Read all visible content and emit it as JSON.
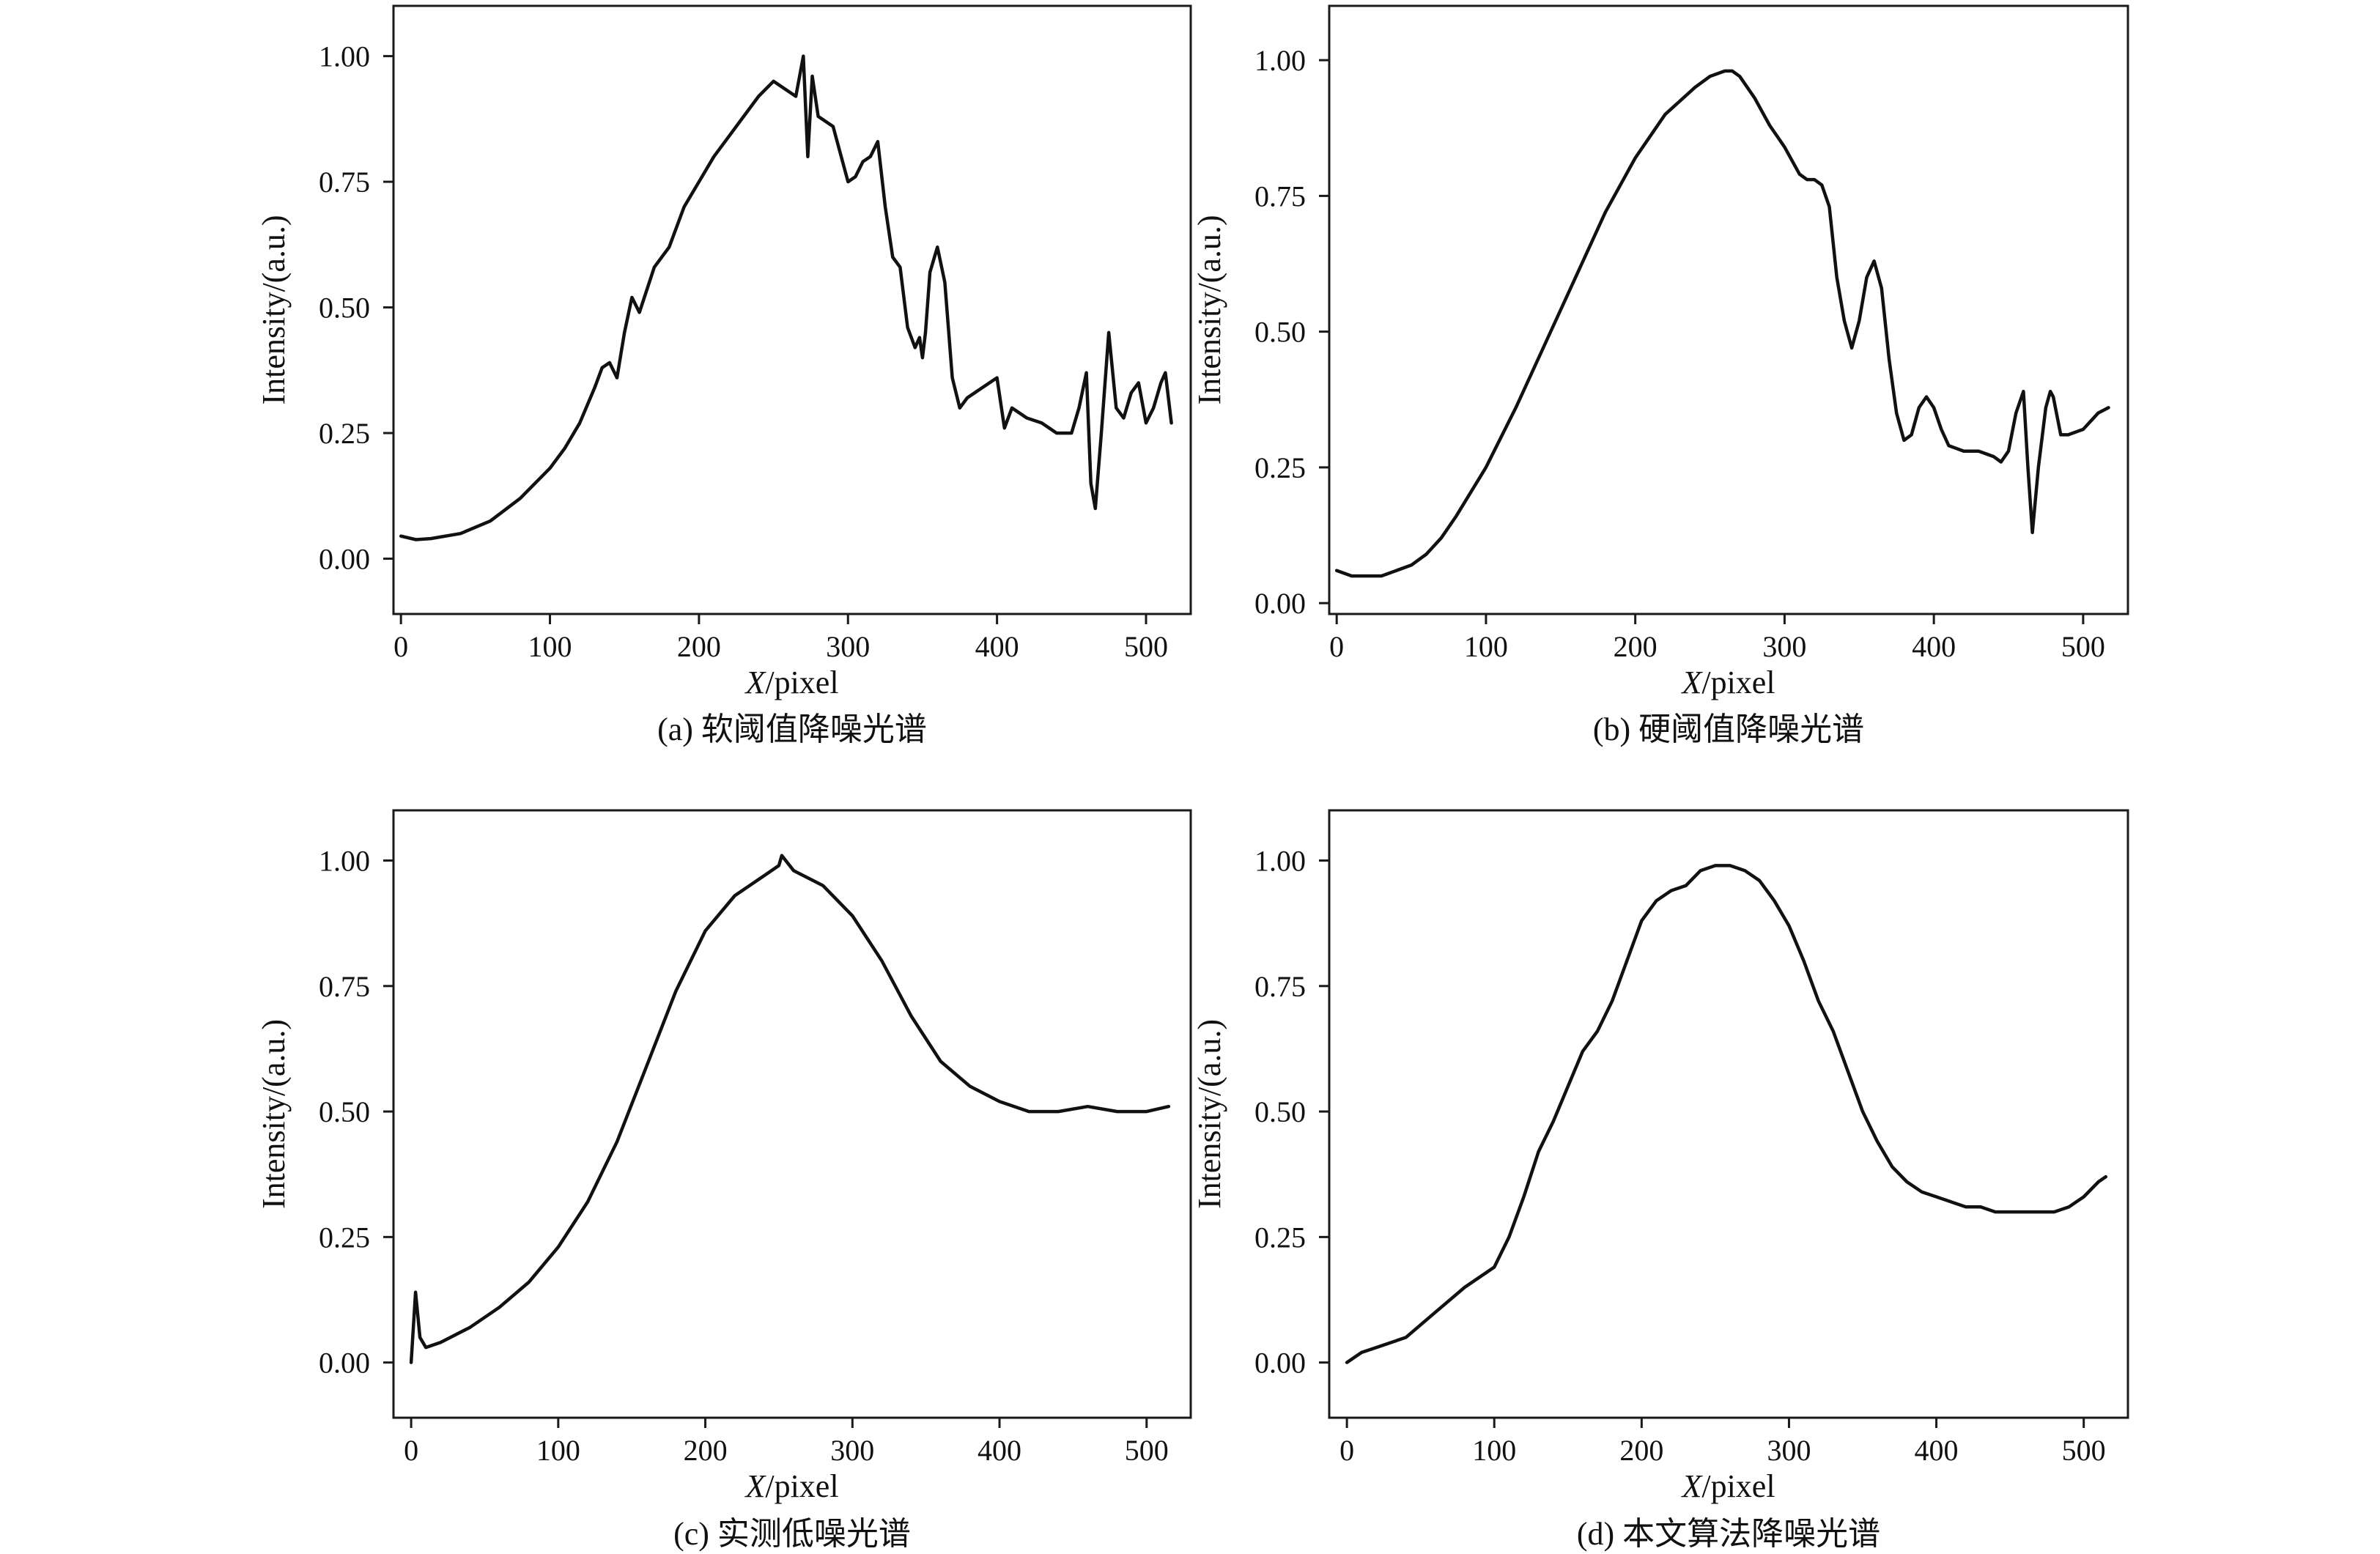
{
  "chart_data": [
    {
      "type": "line",
      "caption": "(a) 软阈值降噪光谱",
      "xlabel": "X/pixel",
      "ylabel": "Intensity/(a.u.)",
      "xlim": [
        -5,
        530
      ],
      "ylim": [
        -0.11,
        1.1
      ],
      "xticks": [
        "0",
        "100",
        "200",
        "300",
        "400",
        "500"
      ],
      "yticks": [
        "0.00",
        "0.25",
        "0.50",
        "0.75",
        "1.00"
      ],
      "series": [
        {
          "x": [
            0,
            10,
            20,
            40,
            60,
            80,
            100,
            110,
            120,
            130,
            135,
            140,
            145,
            150,
            155,
            160,
            170,
            180,
            190,
            200,
            210,
            220,
            230,
            240,
            250,
            260,
            265,
            270,
            273,
            276,
            280,
            285,
            290,
            300,
            305,
            310,
            315,
            320,
            325,
            330,
            335,
            340,
            345,
            348,
            350,
            352,
            355,
            360,
            365,
            370,
            375,
            380,
            390,
            400,
            403,
            405,
            410,
            420,
            430,
            440,
            450,
            455,
            460,
            463,
            466,
            470,
            475,
            480,
            485,
            490,
            495,
            500,
            505,
            510,
            513,
            517
          ],
          "y": [
            0.045,
            0.038,
            0.04,
            0.05,
            0.075,
            0.12,
            0.18,
            0.22,
            0.27,
            0.34,
            0.38,
            0.39,
            0.36,
            0.45,
            0.52,
            0.49,
            0.58,
            0.62,
            0.7,
            0.75,
            0.8,
            0.84,
            0.88,
            0.92,
            0.95,
            0.93,
            0.92,
            1.0,
            0.8,
            0.96,
            0.88,
            0.87,
            0.86,
            0.75,
            0.76,
            0.79,
            0.8,
            0.83,
            0.7,
            0.6,
            0.58,
            0.46,
            0.42,
            0.44,
            0.4,
            0.45,
            0.57,
            0.62,
            0.55,
            0.36,
            0.3,
            0.32,
            0.34,
            0.36,
            0.3,
            0.26,
            0.3,
            0.28,
            0.27,
            0.25,
            0.25,
            0.3,
            0.37,
            0.15,
            0.1,
            0.25,
            0.45,
            0.3,
            0.28,
            0.33,
            0.35,
            0.27,
            0.3,
            0.35,
            0.37,
            0.27
          ]
        }
      ]
    },
    {
      "type": "line",
      "caption": "(b) 硬阈值降噪光谱",
      "xlabel": "X/pixel",
      "ylabel": "Intensity/(a.u.)",
      "xlim": [
        -5,
        530
      ],
      "ylim": [
        -0.02,
        1.1
      ],
      "xticks": [
        "0",
        "100",
        "200",
        "300",
        "400",
        "500"
      ],
      "yticks": [
        "0.00",
        "0.25",
        "0.50",
        "0.75",
        "1.00"
      ],
      "series": [
        {
          "x": [
            0,
            10,
            20,
            30,
            40,
            50,
            60,
            70,
            80,
            100,
            120,
            140,
            160,
            180,
            200,
            220,
            240,
            250,
            260,
            265,
            270,
            280,
            290,
            300,
            310,
            315,
            320,
            325,
            330,
            335,
            340,
            345,
            350,
            355,
            360,
            365,
            370,
            375,
            380,
            385,
            390,
            395,
            400,
            405,
            410,
            420,
            430,
            440,
            445,
            450,
            455,
            460,
            463,
            466,
            470,
            475,
            478,
            480,
            485,
            490,
            500,
            510,
            517
          ],
          "y": [
            0.06,
            0.05,
            0.05,
            0.05,
            0.06,
            0.07,
            0.09,
            0.12,
            0.16,
            0.25,
            0.36,
            0.48,
            0.6,
            0.72,
            0.82,
            0.9,
            0.95,
            0.97,
            0.98,
            0.98,
            0.97,
            0.93,
            0.88,
            0.84,
            0.79,
            0.78,
            0.78,
            0.77,
            0.73,
            0.6,
            0.52,
            0.47,
            0.52,
            0.6,
            0.63,
            0.58,
            0.45,
            0.35,
            0.3,
            0.31,
            0.36,
            0.38,
            0.36,
            0.32,
            0.29,
            0.28,
            0.28,
            0.27,
            0.26,
            0.28,
            0.35,
            0.39,
            0.25,
            0.13,
            0.25,
            0.36,
            0.39,
            0.38,
            0.31,
            0.31,
            0.32,
            0.35,
            0.36
          ]
        }
      ]
    },
    {
      "type": "line",
      "caption": "(c) 实测低噪光谱",
      "xlabel": "X/pixel",
      "ylabel": "Intensity/(a.u.)",
      "xlim": [
        -12,
        530
      ],
      "ylim": [
        -0.11,
        1.1
      ],
      "xticks": [
        "0",
        "100",
        "200",
        "300",
        "400",
        "500"
      ],
      "yticks": [
        "0.00",
        "0.25",
        "0.50",
        "0.75",
        "1.00"
      ],
      "series": [
        {
          "x": [
            0,
            3,
            6,
            10,
            20,
            40,
            60,
            80,
            100,
            120,
            140,
            160,
            180,
            200,
            220,
            240,
            250,
            252,
            260,
            280,
            300,
            320,
            340,
            360,
            380,
            400,
            420,
            440,
            460,
            480,
            500,
            515
          ],
          "y": [
            0.0,
            0.14,
            0.05,
            0.03,
            0.04,
            0.07,
            0.11,
            0.16,
            0.23,
            0.32,
            0.44,
            0.59,
            0.74,
            0.86,
            0.93,
            0.97,
            0.99,
            1.01,
            0.98,
            0.95,
            0.89,
            0.8,
            0.69,
            0.6,
            0.55,
            0.52,
            0.5,
            0.5,
            0.51,
            0.5,
            0.5,
            0.51
          ]
        }
      ]
    },
    {
      "type": "line",
      "caption": "(d) 本文算法降噪光谱",
      "xlabel": "X/pixel",
      "ylabel": "Intensity/(a.u.)",
      "xlim": [
        -12,
        530
      ],
      "ylim": [
        -0.11,
        1.1
      ],
      "xticks": [
        "0",
        "100",
        "200",
        "300",
        "400",
        "500"
      ],
      "yticks": [
        "0.00",
        "0.25",
        "0.50",
        "0.75",
        "1.00"
      ],
      "series": [
        {
          "x": [
            0,
            10,
            20,
            40,
            60,
            80,
            100,
            110,
            120,
            130,
            140,
            150,
            160,
            170,
            180,
            190,
            200,
            210,
            220,
            230,
            240,
            250,
            260,
            270,
            280,
            290,
            300,
            310,
            320,
            330,
            340,
            350,
            360,
            370,
            380,
            390,
            400,
            410,
            420,
            430,
            440,
            450,
            460,
            470,
            480,
            490,
            500,
            510,
            515
          ],
          "y": [
            0.0,
            0.02,
            0.03,
            0.05,
            0.1,
            0.15,
            0.19,
            0.25,
            0.33,
            0.42,
            0.48,
            0.55,
            0.62,
            0.66,
            0.72,
            0.8,
            0.88,
            0.92,
            0.94,
            0.95,
            0.98,
            0.99,
            0.99,
            0.98,
            0.96,
            0.92,
            0.87,
            0.8,
            0.72,
            0.66,
            0.58,
            0.5,
            0.44,
            0.39,
            0.36,
            0.34,
            0.33,
            0.32,
            0.31,
            0.31,
            0.3,
            0.3,
            0.3,
            0.3,
            0.3,
            0.31,
            0.33,
            0.36,
            0.37
          ]
        }
      ]
    }
  ]
}
